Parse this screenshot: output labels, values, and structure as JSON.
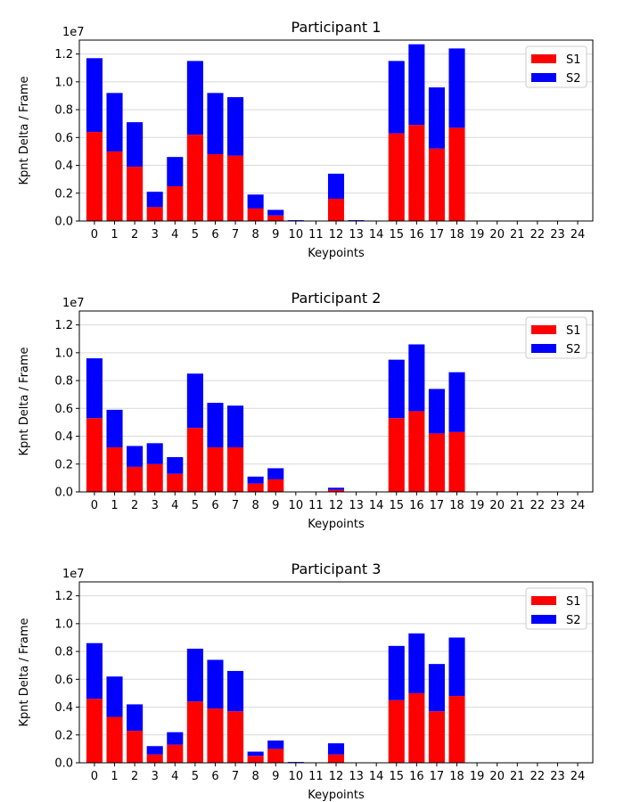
{
  "colors": {
    "S1": "#ff0000",
    "S2": "#0000ff",
    "grid": "#d9d9d9"
  },
  "chart_data": [
    {
      "type": "bar",
      "stacked": true,
      "title": "Participant 1",
      "xlabel": "Keypoints",
      "ylabel": "Kpnt Delta / Frame",
      "y_offset_label": "1e7",
      "ylim": [
        0,
        13000000
      ],
      "yticks": [
        0,
        2000000,
        4000000,
        6000000,
        8000000,
        10000000,
        12000000
      ],
      "ytick_labels": [
        "0.0",
        "0.2",
        "0.4",
        "0.6",
        "0.8",
        "1.0",
        "1.2"
      ],
      "grid": "horizontal",
      "legend": "top-right",
      "categories": [
        "0",
        "1",
        "2",
        "3",
        "4",
        "5",
        "6",
        "7",
        "8",
        "9",
        "10",
        "11",
        "12",
        "13",
        "14",
        "15",
        "16",
        "17",
        "18",
        "19",
        "20",
        "21",
        "22",
        "23",
        "24"
      ],
      "series": [
        {
          "name": "S1",
          "values": [
            6400000,
            5000000,
            3900000,
            1000000,
            2500000,
            6200000,
            4800000,
            4700000,
            900000,
            400000,
            0,
            0,
            1600000,
            0,
            0,
            6300000,
            6900000,
            5200000,
            6700000,
            0,
            0,
            0,
            0,
            0,
            0
          ]
        },
        {
          "name": "S2",
          "values": [
            5300000,
            4200000,
            3200000,
            1100000,
            2100000,
            5300000,
            4400000,
            4200000,
            1000000,
            400000,
            60000,
            0,
            1800000,
            60000,
            0,
            5200000,
            5800000,
            4400000,
            5700000,
            0,
            0,
            0,
            0,
            0,
            0
          ]
        }
      ]
    },
    {
      "type": "bar",
      "stacked": true,
      "title": "Participant 2",
      "xlabel": "Keypoints",
      "ylabel": "Kpnt Delta / Frame",
      "y_offset_label": "1e7",
      "ylim": [
        0,
        13000000
      ],
      "yticks": [
        0,
        2000000,
        4000000,
        6000000,
        8000000,
        10000000,
        12000000
      ],
      "ytick_labels": [
        "0.0",
        "0.2",
        "0.4",
        "0.6",
        "0.8",
        "1.0",
        "1.2"
      ],
      "grid": "horizontal",
      "legend": "top-right",
      "categories": [
        "0",
        "1",
        "2",
        "3",
        "4",
        "5",
        "6",
        "7",
        "8",
        "9",
        "10",
        "11",
        "12",
        "13",
        "14",
        "15",
        "16",
        "17",
        "18",
        "19",
        "20",
        "21",
        "22",
        "23",
        "24"
      ],
      "series": [
        {
          "name": "S1",
          "values": [
            5300000,
            3200000,
            1800000,
            2000000,
            1300000,
            4600000,
            3200000,
            3200000,
            600000,
            900000,
            0,
            0,
            150000,
            0,
            0,
            5300000,
            5800000,
            4200000,
            4300000,
            0,
            0,
            0,
            0,
            0,
            0
          ]
        },
        {
          "name": "S2",
          "values": [
            4300000,
            2700000,
            1500000,
            1500000,
            1200000,
            3900000,
            3200000,
            3000000,
            500000,
            800000,
            0,
            0,
            150000,
            0,
            0,
            4200000,
            4800000,
            3200000,
            4300000,
            0,
            0,
            0,
            0,
            0,
            0
          ]
        }
      ]
    },
    {
      "type": "bar",
      "stacked": true,
      "title": "Participant 3",
      "xlabel": "Keypoints",
      "ylabel": "Kpnt Delta / Frame",
      "y_offset_label": "1e7",
      "ylim": [
        0,
        13000000
      ],
      "yticks": [
        0,
        2000000,
        4000000,
        6000000,
        8000000,
        10000000,
        12000000
      ],
      "ytick_labels": [
        "0.0",
        "0.2",
        "0.4",
        "0.6",
        "0.8",
        "1.0",
        "1.2"
      ],
      "grid": "horizontal",
      "legend": "top-right",
      "categories": [
        "0",
        "1",
        "2",
        "3",
        "4",
        "5",
        "6",
        "7",
        "8",
        "9",
        "10",
        "11",
        "12",
        "13",
        "14",
        "15",
        "16",
        "17",
        "18",
        "19",
        "20",
        "21",
        "22",
        "23",
        "24"
      ],
      "series": [
        {
          "name": "S1",
          "values": [
            4600000,
            3300000,
            2300000,
            600000,
            1300000,
            4400000,
            3900000,
            3700000,
            500000,
            1000000,
            0,
            0,
            600000,
            0,
            0,
            4500000,
            5000000,
            3700000,
            4800000,
            0,
            0,
            0,
            0,
            0,
            0
          ]
        },
        {
          "name": "S2",
          "values": [
            4000000,
            2900000,
            1900000,
            600000,
            900000,
            3800000,
            3500000,
            2900000,
            300000,
            600000,
            60000,
            0,
            800000,
            0,
            0,
            3900000,
            4300000,
            3400000,
            4200000,
            0,
            0,
            0,
            0,
            0,
            0
          ]
        }
      ]
    }
  ]
}
